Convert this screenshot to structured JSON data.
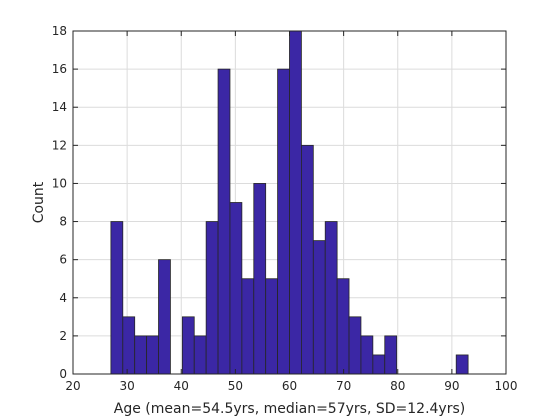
{
  "chart_data": {
    "type": "bar",
    "title": "",
    "xlabel": "Age (mean=54.5yrs, median=57yrs, SD=12.4yrs)",
    "ylabel": "Count",
    "xlim": [
      20,
      100
    ],
    "ylim": [
      0,
      18
    ],
    "xticks": [
      "20",
      "30",
      "40",
      "50",
      "60",
      "70",
      "80",
      "90",
      "100"
    ],
    "yticks": [
      "0",
      "2",
      "4",
      "6",
      "8",
      "10",
      "12",
      "14",
      "16",
      "18"
    ],
    "grid": true,
    "bar_color": "#3b27a5",
    "bins": [
      {
        "x0": 27.0,
        "x1": 29.2,
        "count": 8
      },
      {
        "x0": 29.2,
        "x1": 31.4,
        "count": 3
      },
      {
        "x0": 31.4,
        "x1": 33.6,
        "count": 2
      },
      {
        "x0": 33.6,
        "x1": 35.8,
        "count": 2
      },
      {
        "x0": 35.8,
        "x1": 38.0,
        "count": 6
      },
      {
        "x0": 38.0,
        "x1": 40.2,
        "count": 0
      },
      {
        "x0": 40.2,
        "x1": 42.4,
        "count": 3
      },
      {
        "x0": 42.4,
        "x1": 44.6,
        "count": 2
      },
      {
        "x0": 44.6,
        "x1": 46.8,
        "count": 8
      },
      {
        "x0": 46.8,
        "x1": 49.0,
        "count": 16
      },
      {
        "x0": 49.0,
        "x1": 51.2,
        "count": 9
      },
      {
        "x0": 51.2,
        "x1": 53.4,
        "count": 5
      },
      {
        "x0": 53.4,
        "x1": 55.6,
        "count": 10
      },
      {
        "x0": 55.6,
        "x1": 57.8,
        "count": 5
      },
      {
        "x0": 57.8,
        "x1": 60.0,
        "count": 16
      },
      {
        "x0": 60.0,
        "x1": 62.2,
        "count": 18
      },
      {
        "x0": 62.2,
        "x1": 64.4,
        "count": 12
      },
      {
        "x0": 64.4,
        "x1": 66.6,
        "count": 7
      },
      {
        "x0": 66.6,
        "x1": 68.8,
        "count": 8
      },
      {
        "x0": 68.8,
        "x1": 71.0,
        "count": 5
      },
      {
        "x0": 71.0,
        "x1": 73.2,
        "count": 3
      },
      {
        "x0": 73.2,
        "x1": 75.4,
        "count": 2
      },
      {
        "x0": 75.4,
        "x1": 77.6,
        "count": 1
      },
      {
        "x0": 77.6,
        "x1": 79.8,
        "count": 2
      },
      {
        "x0": 79.8,
        "x1": 82.0,
        "count": 0
      },
      {
        "x0": 82.0,
        "x1": 84.2,
        "count": 0
      },
      {
        "x0": 84.2,
        "x1": 86.4,
        "count": 0
      },
      {
        "x0": 86.4,
        "x1": 88.6,
        "count": 0
      },
      {
        "x0": 88.6,
        "x1": 90.8,
        "count": 0
      },
      {
        "x0": 90.8,
        "x1": 93.0,
        "count": 1
      }
    ]
  }
}
